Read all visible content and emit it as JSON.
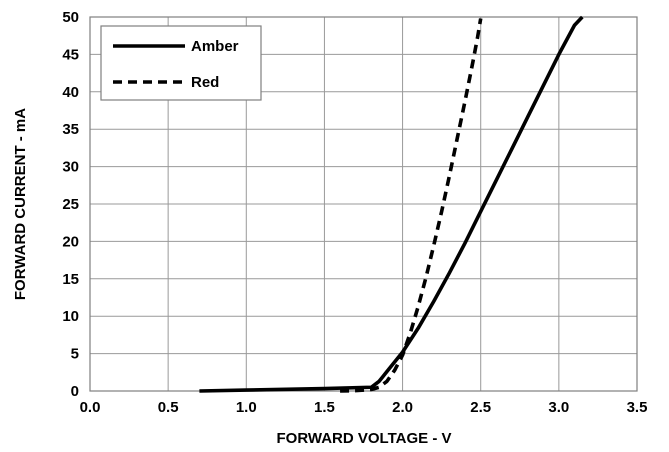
{
  "chart_data": {
    "type": "line",
    "title": "",
    "xlabel": "FORWARD VOLTAGE - V",
    "ylabel": "FORWARD CURRENT - mA",
    "xlim": [
      0,
      3.5
    ],
    "ylim": [
      0,
      50
    ],
    "x_ticks": [
      0,
      0.5,
      1.0,
      1.5,
      2.0,
      2.5,
      3.0,
      3.5
    ],
    "x_tick_labels": [
      "0.0",
      "0.5",
      "1.0",
      "1.5",
      "2.0",
      "2.5",
      "3.0",
      "3.5"
    ],
    "y_ticks": [
      0,
      5,
      10,
      15,
      20,
      25,
      30,
      35,
      40,
      45,
      50
    ],
    "y_tick_labels": [
      "0",
      "5",
      "10",
      "15",
      "20",
      "25",
      "30",
      "35",
      "40",
      "45",
      "50"
    ],
    "grid": true,
    "legend_position": "top-left",
    "series": [
      {
        "name": "Amber",
        "style": "solid",
        "color": "#000000",
        "x": [
          0.7,
          1.0,
          1.5,
          1.8,
          1.85,
          1.9,
          2.0,
          2.1,
          2.2,
          2.3,
          2.4,
          2.5,
          2.6,
          2.7,
          2.8,
          2.9,
          3.0,
          3.1,
          3.15
        ],
        "y": [
          0.0,
          0.12,
          0.32,
          0.5,
          1.3,
          2.6,
          5.2,
          8.4,
          12.0,
          15.8,
          19.8,
          24.0,
          28.2,
          32.4,
          36.6,
          40.8,
          45.0,
          48.9,
          50.0
        ]
      },
      {
        "name": "Red",
        "style": "dashed",
        "color": "#000000",
        "x": [
          1.6,
          1.7,
          1.8,
          1.85,
          1.9,
          1.95,
          2.0,
          2.05,
          2.1,
          2.15,
          2.2,
          2.25,
          2.3,
          2.35,
          2.4,
          2.45,
          2.48,
          2.5
        ],
        "y": [
          0.0,
          0.05,
          0.2,
          0.5,
          1.3,
          2.8,
          4.8,
          7.8,
          11.3,
          15.2,
          19.5,
          24.0,
          28.8,
          33.8,
          38.8,
          44.0,
          47.3,
          49.8
        ]
      }
    ]
  }
}
